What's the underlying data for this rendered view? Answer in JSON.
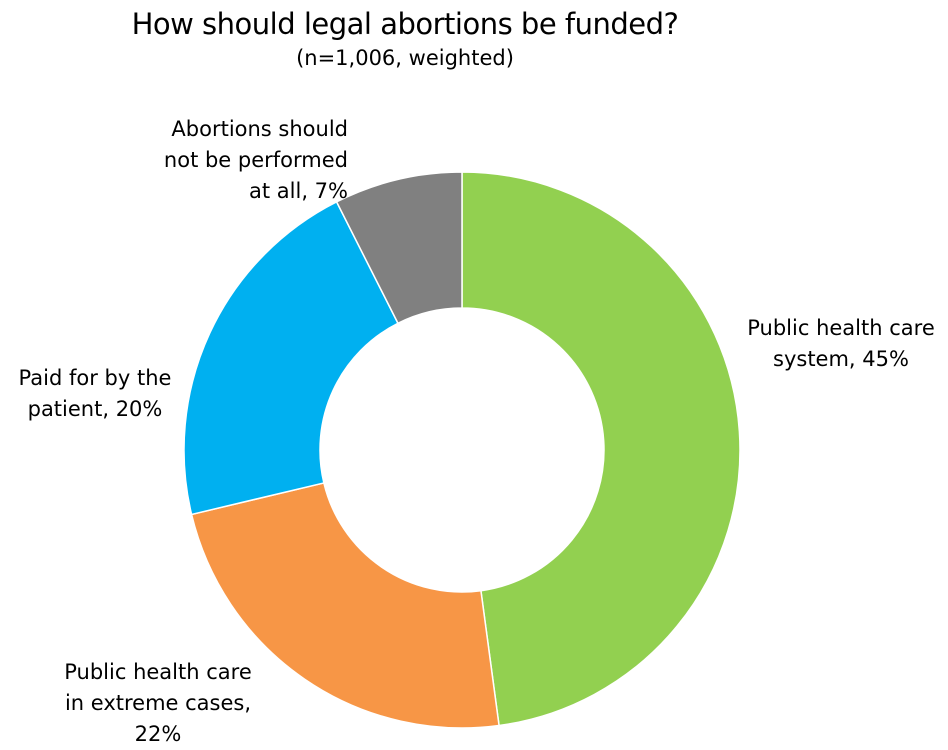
{
  "chart_data": {
    "type": "pie",
    "donut": true,
    "title": "How should legal abortions be funded?",
    "subtitle": "(n=1,006, weighted)",
    "legend": "none",
    "slices": [
      {
        "label": "Public health care system, 45%",
        "value": 45,
        "color": "#92d050"
      },
      {
        "label": "Public health care in extreme cases, 22%",
        "value": 22,
        "color": "#f79646"
      },
      {
        "label": "Paid for by the patient, 20%",
        "value": 20,
        "color": "#00b0f0"
      },
      {
        "label": "Abortions should not be performed at all, 7%",
        "value": 7,
        "color": "#808080"
      }
    ]
  }
}
